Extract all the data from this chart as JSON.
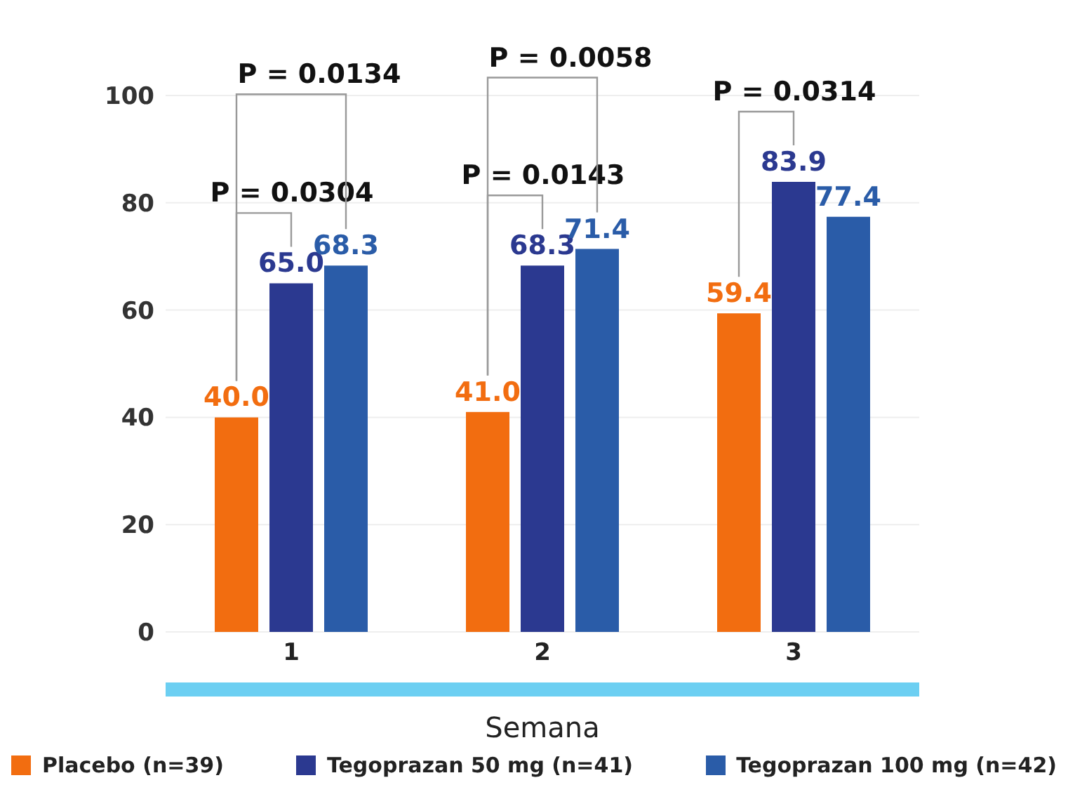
{
  "chart_data": {
    "type": "bar",
    "xlabel": "Semana",
    "categories": [
      "1",
      "2",
      "3"
    ],
    "series": [
      {
        "name": "Placebo (n=39)",
        "color": "#f26d10",
        "values": [
          40.0,
          41.0,
          59.4
        ],
        "value_labels": [
          "40.0",
          "41.0",
          "59.4"
        ]
      },
      {
        "name": "Tegoprazan 50 mg (n=41)",
        "color": "#2b3990",
        "values": [
          65.0,
          68.3,
          83.9
        ],
        "value_labels": [
          "65.0",
          "68.3",
          "83.9"
        ]
      },
      {
        "name": "Tegoprazan 100 mg (n=42)",
        "color": "#2a5ca8",
        "values": [
          68.3,
          71.4,
          77.4
        ],
        "value_labels": [
          "68.3",
          "71.4",
          "77.4"
        ]
      }
    ],
    "ylim": [
      0,
      100
    ],
    "yticks": [
      0,
      20,
      40,
      60,
      80,
      100
    ],
    "grid": "y",
    "legend": "bottom",
    "annotations": [
      "P = 0.0304",
      "P = 0.0134",
      "P = 0.0143",
      "P = 0.0058",
      "P = 0.0314"
    ]
  }
}
